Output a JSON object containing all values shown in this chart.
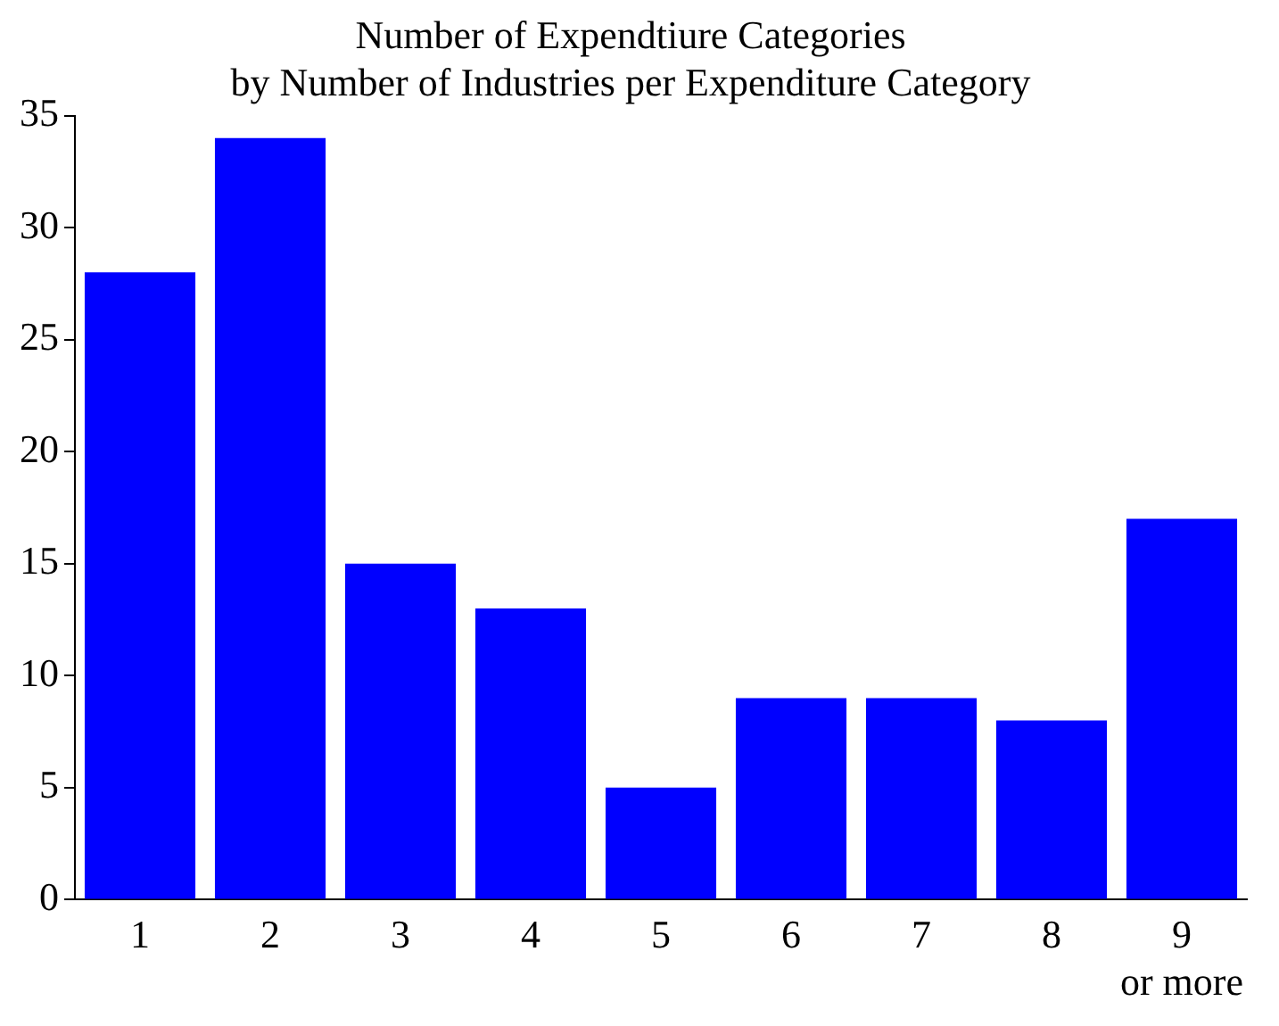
{
  "chart_data": {
    "type": "bar",
    "title": "Number of Expendtiure Categories\nby Number of Industries per Expenditure Category",
    "categories": [
      "1",
      "2",
      "3",
      "4",
      "5",
      "6",
      "7",
      "8",
      "9\nor more"
    ],
    "values": [
      28,
      34,
      15,
      13,
      5,
      9,
      9,
      8,
      17
    ],
    "color": "#0000ff",
    "ylim": [
      0,
      35
    ],
    "yticks": [
      0,
      5,
      10,
      15,
      20,
      25,
      30,
      35
    ],
    "grid": false,
    "legend": false
  }
}
